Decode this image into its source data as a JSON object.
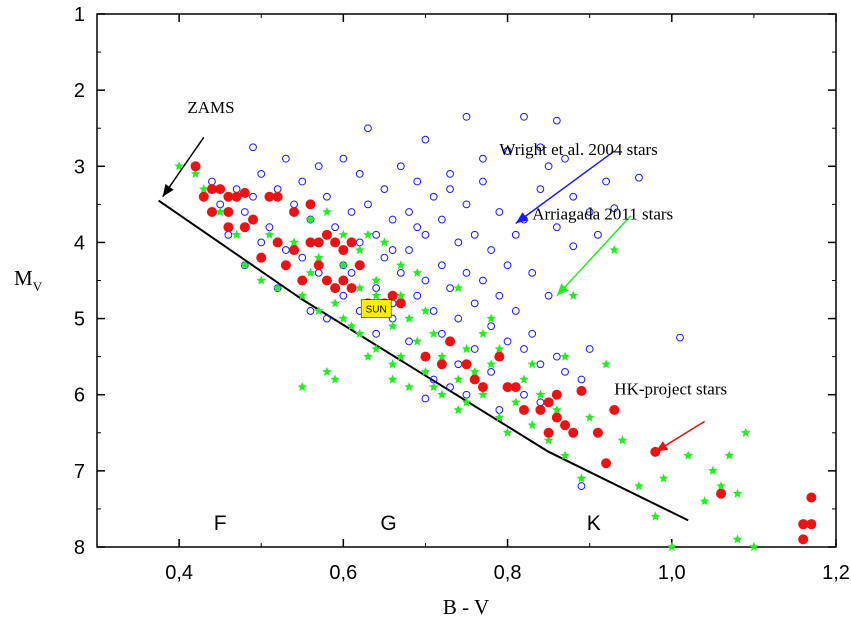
{
  "chart_data": {
    "type": "scatter",
    "xlabel": "B - V",
    "ylabel": "M",
    "ylabel_sub": "V",
    "xlim": [
      0.3,
      1.2
    ],
    "ylim": [
      1,
      8
    ],
    "y_inverted": true,
    "x_ticks": [
      {
        "value": 0.4,
        "label": "0,4"
      },
      {
        "value": 0.6,
        "label": "0,6"
      },
      {
        "value": 0.8,
        "label": "0,8"
      },
      {
        "value": 1.0,
        "label": "1,0"
      },
      {
        "value": 1.2,
        "label": "1,2"
      }
    ],
    "y_ticks": [
      {
        "value": 1,
        "label": "1"
      },
      {
        "value": 2,
        "label": "2"
      },
      {
        "value": 3,
        "label": "3"
      },
      {
        "value": 4,
        "label": "4"
      },
      {
        "value": 5,
        "label": "5"
      },
      {
        "value": 6,
        "label": "6"
      },
      {
        "value": 7,
        "label": "7"
      },
      {
        "value": 8,
        "label": "8"
      }
    ],
    "grid": false,
    "series": [
      {
        "name": "Wright et al. 2004 stars",
        "marker": "open-circle",
        "color": "#1a1aff",
        "points": [
          [
            0.44,
            3.2
          ],
          [
            0.45,
            3.5
          ],
          [
            0.47,
            3.3
          ],
          [
            0.48,
            3.6
          ],
          [
            0.49,
            2.75
          ],
          [
            0.5,
            3.1
          ],
          [
            0.51,
            3.8
          ],
          [
            0.52,
            3.3
          ],
          [
            0.53,
            2.9
          ],
          [
            0.54,
            3.5
          ],
          [
            0.55,
            3.2
          ],
          [
            0.55,
            4.2
          ],
          [
            0.56,
            3.7
          ],
          [
            0.57,
            3.0
          ],
          [
            0.57,
            4.4
          ],
          [
            0.58,
            3.4
          ],
          [
            0.59,
            3.8
          ],
          [
            0.6,
            2.9
          ],
          [
            0.6,
            4.3
          ],
          [
            0.61,
            3.6
          ],
          [
            0.62,
            3.1
          ],
          [
            0.62,
            4.0
          ],
          [
            0.63,
            2.5
          ],
          [
            0.63,
            3.5
          ],
          [
            0.64,
            3.9
          ],
          [
            0.64,
            4.6
          ],
          [
            0.65,
            3.3
          ],
          [
            0.65,
            4.2
          ],
          [
            0.66,
            3.7
          ],
          [
            0.66,
            4.8
          ],
          [
            0.67,
            3.0
          ],
          [
            0.67,
            4.4
          ],
          [
            0.68,
            3.6
          ],
          [
            0.68,
            4.1
          ],
          [
            0.69,
            3.2
          ],
          [
            0.69,
            4.7
          ],
          [
            0.7,
            2.65
          ],
          [
            0.7,
            3.9
          ],
          [
            0.7,
            4.5
          ],
          [
            0.71,
            3.4
          ],
          [
            0.71,
            4.9
          ],
          [
            0.72,
            3.7
          ],
          [
            0.72,
            4.3
          ],
          [
            0.73,
            3.1
          ],
          [
            0.73,
            4.6
          ],
          [
            0.74,
            4.0
          ],
          [
            0.74,
            5.0
          ],
          [
            0.75,
            2.35
          ],
          [
            0.75,
            3.5
          ],
          [
            0.75,
            4.4
          ],
          [
            0.76,
            3.9
          ],
          [
            0.76,
            4.8
          ],
          [
            0.77,
            3.2
          ],
          [
            0.77,
            4.5
          ],
          [
            0.78,
            4.1
          ],
          [
            0.78,
            5.1
          ],
          [
            0.79,
            3.6
          ],
          [
            0.79,
            4.7
          ],
          [
            0.8,
            2.8
          ],
          [
            0.8,
            4.3
          ],
          [
            0.8,
            5.3
          ],
          [
            0.81,
            3.9
          ],
          [
            0.81,
            4.9
          ],
          [
            0.82,
            2.35
          ],
          [
            0.82,
            3.7
          ],
          [
            0.82,
            5.4
          ],
          [
            0.83,
            4.4
          ],
          [
            0.83,
            5.2
          ],
          [
            0.84,
            2.75
          ],
          [
            0.84,
            3.3
          ],
          [
            0.84,
            5.6
          ],
          [
            0.85,
            4.7
          ],
          [
            0.86,
            2.4
          ],
          [
            0.86,
            3.8
          ],
          [
            0.86,
            5.5
          ],
          [
            0.87,
            2.9
          ],
          [
            0.87,
            5.7
          ],
          [
            0.88,
            3.4
          ],
          [
            0.88,
            4.05
          ],
          [
            0.89,
            5.8
          ],
          [
            0.9,
            3.6
          ],
          [
            0.9,
            5.4
          ],
          [
            0.91,
            3.9
          ],
          [
            0.93,
            3.55
          ],
          [
            0.96,
            3.15
          ],
          [
            1.01,
            5.25
          ],
          [
            0.48,
            4.3
          ],
          [
            0.5,
            4.0
          ],
          [
            0.52,
            4.6
          ],
          [
            0.56,
            4.9
          ],
          [
            0.58,
            5.0
          ],
          [
            0.6,
            4.7
          ],
          [
            0.62,
            4.9
          ],
          [
            0.64,
            5.2
          ],
          [
            0.66,
            5.0
          ],
          [
            0.68,
            5.3
          ],
          [
            0.7,
            5.5
          ],
          [
            0.72,
            5.2
          ],
          [
            0.74,
            5.6
          ],
          [
            0.76,
            5.4
          ],
          [
            0.78,
            5.7
          ],
          [
            0.8,
            5.9
          ],
          [
            0.82,
            6.0
          ],
          [
            0.84,
            6.1
          ],
          [
            0.7,
            6.05
          ],
          [
            0.71,
            5.8
          ],
          [
            0.73,
            5.9
          ],
          [
            0.75,
            6.0
          ],
          [
            0.79,
            6.2
          ],
          [
            0.89,
            7.2
          ],
          [
            0.46,
            3.9
          ],
          [
            0.49,
            3.4
          ],
          [
            0.53,
            4.1
          ],
          [
            0.61,
            4.4
          ],
          [
            0.69,
            3.8
          ],
          [
            0.73,
            3.3
          ],
          [
            0.77,
            2.9
          ],
          [
            0.85,
            3.0
          ],
          [
            0.92,
            3.2
          ],
          [
            0.66,
            4.1
          ]
        ]
      },
      {
        "name": "Arriagada 2011 stars",
        "marker": "star",
        "color": "#22ee22",
        "points": [
          [
            0.4,
            3.0
          ],
          [
            0.42,
            3.1
          ],
          [
            0.43,
            3.3
          ],
          [
            0.45,
            3.6
          ],
          [
            0.47,
            3.9
          ],
          [
            0.48,
            4.3
          ],
          [
            0.5,
            4.2
          ],
          [
            0.5,
            4.5
          ],
          [
            0.51,
            3.9
          ],
          [
            0.52,
            4.6
          ],
          [
            0.53,
            4.3
          ],
          [
            0.54,
            4.0
          ],
          [
            0.55,
            4.7
          ],
          [
            0.56,
            4.4
          ],
          [
            0.57,
            4.2
          ],
          [
            0.57,
            4.9
          ],
          [
            0.58,
            3.6
          ],
          [
            0.58,
            4.5
          ],
          [
            0.59,
            4.8
          ],
          [
            0.6,
            4.3
          ],
          [
            0.6,
            5.0
          ],
          [
            0.61,
            4.6
          ],
          [
            0.62,
            4.1
          ],
          [
            0.62,
            5.2
          ],
          [
            0.63,
            4.8
          ],
          [
            0.64,
            4.5
          ],
          [
            0.64,
            5.4
          ],
          [
            0.65,
            4.9
          ],
          [
            0.66,
            5.1
          ],
          [
            0.67,
            4.7
          ],
          [
            0.67,
            5.5
          ],
          [
            0.68,
            5.0
          ],
          [
            0.69,
            5.3
          ],
          [
            0.7,
            4.9
          ],
          [
            0.7,
            5.7
          ],
          [
            0.71,
            5.2
          ],
          [
            0.72,
            5.5
          ],
          [
            0.72,
            6.0
          ],
          [
            0.73,
            5.3
          ],
          [
            0.74,
            5.8
          ],
          [
            0.75,
            5.4
          ],
          [
            0.75,
            6.1
          ],
          [
            0.76,
            5.7
          ],
          [
            0.77,
            5.2
          ],
          [
            0.77,
            6.0
          ],
          [
            0.78,
            5.6
          ],
          [
            0.79,
            6.3
          ],
          [
            0.8,
            5.9
          ],
          [
            0.8,
            6.5
          ],
          [
            0.81,
            6.1
          ],
          [
            0.82,
            5.8
          ],
          [
            0.83,
            6.4
          ],
          [
            0.84,
            6.0
          ],
          [
            0.85,
            6.6
          ],
          [
            0.86,
            6.2
          ],
          [
            0.87,
            6.8
          ],
          [
            0.88,
            6.5
          ],
          [
            0.89,
            7.1
          ],
          [
            0.9,
            6.3
          ],
          [
            0.92,
            6.9
          ],
          [
            0.94,
            6.6
          ],
          [
            0.96,
            7.2
          ],
          [
            0.98,
            7.6
          ],
          [
            0.99,
            7.1
          ],
          [
            1.0,
            8.0
          ],
          [
            1.02,
            6.8
          ],
          [
            1.04,
            7.4
          ],
          [
            1.05,
            7.0
          ],
          [
            1.06,
            7.2
          ],
          [
            1.07,
            6.8
          ],
          [
            1.08,
            7.3
          ],
          [
            1.08,
            7.9
          ],
          [
            1.09,
            6.5
          ],
          [
            1.1,
            8.0
          ],
          [
            0.55,
            5.9
          ],
          [
            0.58,
            5.7
          ],
          [
            0.59,
            5.8
          ],
          [
            0.63,
            5.5
          ],
          [
            0.66,
            5.6
          ],
          [
            0.68,
            5.9
          ],
          [
            0.71,
            5.9
          ],
          [
            0.74,
            6.2
          ],
          [
            0.63,
            3.9
          ],
          [
            0.65,
            4.0
          ],
          [
            0.56,
            3.7
          ],
          [
            0.6,
            3.9
          ],
          [
            0.69,
            4.4
          ],
          [
            0.74,
            4.6
          ],
          [
            0.78,
            5.0
          ],
          [
            0.66,
            5.8
          ],
          [
            0.93,
            4.1
          ],
          [
            0.88,
            4.7
          ],
          [
            0.92,
            5.6
          ],
          [
            0.87,
            5.5
          ],
          [
            0.62,
            4.6
          ],
          [
            0.64,
            4.7
          ],
          [
            0.61,
            5.1
          ],
          [
            0.67,
            4.3
          ],
          [
            0.79,
            5.4
          ],
          [
            0.83,
            5.6
          ]
        ]
      },
      {
        "name": "HK-project stars",
        "marker": "filled-circle",
        "color": "#ee1111",
        "points": [
          [
            0.42,
            3.0
          ],
          [
            0.43,
            3.4
          ],
          [
            0.44,
            3.3
          ],
          [
            0.45,
            3.3
          ],
          [
            0.46,
            3.4
          ],
          [
            0.47,
            3.4
          ],
          [
            0.48,
            3.35
          ],
          [
            0.44,
            3.6
          ],
          [
            0.46,
            3.6
          ],
          [
            0.46,
            3.8
          ],
          [
            0.48,
            3.8
          ],
          [
            0.49,
            3.7
          ],
          [
            0.5,
            4.2
          ],
          [
            0.51,
            3.4
          ],
          [
            0.52,
            3.4
          ],
          [
            0.52,
            4.0
          ],
          [
            0.53,
            4.3
          ],
          [
            0.54,
            3.6
          ],
          [
            0.54,
            4.1
          ],
          [
            0.55,
            4.5
          ],
          [
            0.56,
            3.5
          ],
          [
            0.56,
            4.0
          ],
          [
            0.57,
            4.0
          ],
          [
            0.57,
            4.3
          ],
          [
            0.58,
            3.9
          ],
          [
            0.58,
            4.5
          ],
          [
            0.59,
            4.0
          ],
          [
            0.59,
            4.6
          ],
          [
            0.6,
            4.1
          ],
          [
            0.6,
            4.5
          ],
          [
            0.61,
            4.0
          ],
          [
            0.61,
            4.6
          ],
          [
            0.62,
            4.3
          ],
          [
            0.63,
            4.8
          ],
          [
            0.65,
            4.8
          ],
          [
            0.66,
            4.7
          ],
          [
            0.67,
            4.8
          ],
          [
            0.7,
            5.5
          ],
          [
            0.72,
            5.6
          ],
          [
            0.73,
            5.3
          ],
          [
            0.75,
            5.6
          ],
          [
            0.76,
            5.8
          ],
          [
            0.77,
            5.9
          ],
          [
            0.79,
            5.5
          ],
          [
            0.8,
            5.9
          ],
          [
            0.81,
            5.9
          ],
          [
            0.82,
            6.2
          ],
          [
            0.84,
            6.2
          ],
          [
            0.85,
            6.1
          ],
          [
            0.85,
            6.5
          ],
          [
            0.86,
            6.3
          ],
          [
            0.86,
            6.0
          ],
          [
            0.87,
            6.4
          ],
          [
            0.88,
            6.5
          ],
          [
            0.89,
            5.95
          ],
          [
            0.91,
            6.5
          ],
          [
            0.92,
            6.9
          ],
          [
            0.93,
            6.2
          ],
          [
            0.98,
            6.75
          ],
          [
            1.06,
            7.3
          ],
          [
            1.16,
            7.7
          ],
          [
            1.16,
            7.9
          ],
          [
            1.17,
            7.35
          ],
          [
            1.17,
            7.7
          ]
        ]
      }
    ],
    "zams_line": [
      [
        0.375,
        3.45
      ],
      [
        0.55,
        4.75
      ],
      [
        0.7,
        5.75
      ],
      [
        0.85,
        6.75
      ],
      [
        1.02,
        7.65
      ]
    ],
    "sun": {
      "x": 0.64,
      "y": 4.87,
      "label": "SUN"
    },
    "annotations": [
      {
        "text": "ZAMS",
        "x": 0.41,
        "y": 2.3
      },
      {
        "text": "Wright et al. 2004 stars",
        "x": 0.79,
        "y": 2.85
      },
      {
        "text": "Arriagada 2011 stars",
        "x": 0.83,
        "y": 3.7
      },
      {
        "text": "HK-project stars",
        "x": 0.93,
        "y": 6.0
      }
    ],
    "arrows": [
      {
        "from": [
          0.43,
          2.62
        ],
        "to": [
          0.38,
          3.4
        ],
        "color": "#000000"
      },
      {
        "from": [
          0.93,
          2.8
        ],
        "to": [
          0.81,
          3.75
        ],
        "color": "#1a1aff"
      },
      {
        "from": [
          0.95,
          3.65
        ],
        "to": [
          0.86,
          4.7
        ],
        "color": "#22ee22"
      },
      {
        "from": [
          1.04,
          6.35
        ],
        "to": [
          0.98,
          6.75
        ],
        "color": "#ee1111"
      }
    ],
    "spectral_labels": [
      {
        "text": "F",
        "x": 0.45
      },
      {
        "text": "G",
        "x": 0.655
      },
      {
        "text": "K",
        "x": 0.905
      }
    ]
  }
}
